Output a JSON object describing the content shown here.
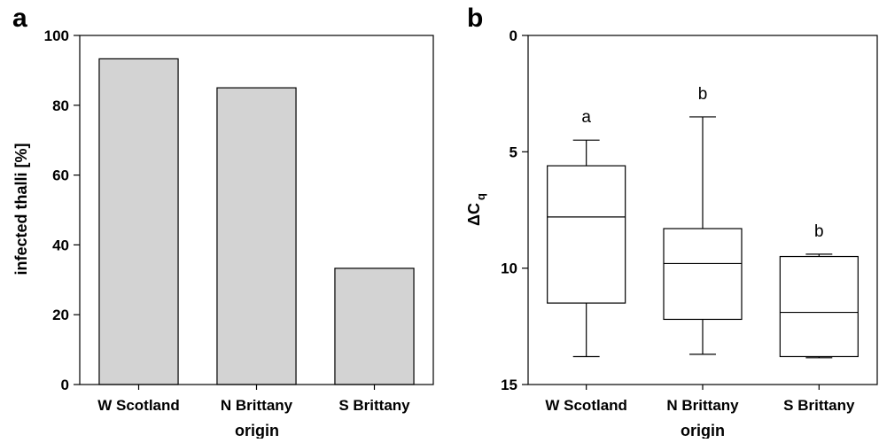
{
  "chart_data": [
    {
      "type": "bar",
      "panel_label": "a",
      "categories": [
        "W Scotland",
        "N Brittany",
        "S Brittany"
      ],
      "values": [
        93.3,
        85.0,
        33.3
      ],
      "xlabel": "origin",
      "ylabel": "infected thalli [%]",
      "ylim": [
        0,
        100
      ],
      "yticks": [
        "0",
        "20",
        "40",
        "60",
        "80",
        "100"
      ],
      "bar_color": "#d3d3d3",
      "grid": false
    },
    {
      "type": "box",
      "panel_label": "b",
      "categories": [
        "W Scotland",
        "N Brittany",
        "S Brittany"
      ],
      "boxes": [
        {
          "whisker_low": 4.5,
          "q1": 5.6,
          "median": 7.8,
          "q3": 11.5,
          "whisker_high": 13.8,
          "annotation": "a"
        },
        {
          "whisker_low": 3.5,
          "q1": 8.3,
          "median": 9.8,
          "q3": 12.2,
          "whisker_high": 13.7,
          "annotation": "b"
        },
        {
          "whisker_low": 9.4,
          "q1": 9.5,
          "median": 11.9,
          "q3": 13.8,
          "whisker_high": 13.85,
          "annotation": "b"
        }
      ],
      "xlabel": "origin",
      "ylabel_main": "ΔC",
      "ylabel_sub": "q",
      "ylim": [
        0,
        15
      ],
      "y_inverted": true,
      "yticks": [
        "0",
        "5",
        "10",
        "15"
      ],
      "grid": false
    }
  ]
}
